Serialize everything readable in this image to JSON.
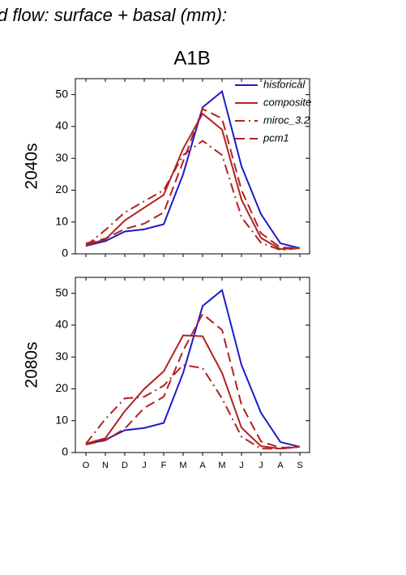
{
  "title": "d flow: surface + basal (mm):",
  "subtitle": "A1B",
  "chart_data": [
    {
      "type": "line",
      "ylabel": "2040s",
      "categories": [
        null,
        null,
        null,
        null,
        null,
        null,
        null,
        null,
        null,
        null,
        null,
        null
      ],
      "ylim": [
        0,
        55
      ],
      "yticks": [
        0,
        10,
        20,
        30,
        40,
        50
      ],
      "legend": "upper right",
      "series": [
        {
          "name": "historical",
          "color": "#1c1cc8",
          "linestyle": "solid",
          "values": [
            2.5,
            4,
            7,
            7.7,
            9.3,
            25,
            46,
            51,
            27.5,
            12.5,
            3.3,
            1.8
          ]
        },
        {
          "name": "composite",
          "color": "#b22222",
          "linestyle": "solid",
          "values": [
            2.8,
            4.5,
            10.5,
            14.5,
            18.5,
            33,
            44,
            39,
            17,
            5,
            1.5,
            1.8
          ]
        },
        {
          "name": "miroc_3.2",
          "color": "#b22222",
          "linestyle": "dashdot",
          "values": [
            2.5,
            7.5,
            13,
            16.5,
            20,
            31,
            35.5,
            31,
            11.5,
            3.5,
            1.2,
            1.8
          ]
        },
        {
          "name": "pcm1",
          "color": "#b22222",
          "linestyle": "dashed",
          "values": [
            3.3,
            4.8,
            7.8,
            9.5,
            13,
            29,
            45.5,
            42.5,
            20,
            6.5,
            2,
            1.8
          ]
        }
      ]
    },
    {
      "type": "line",
      "ylabel": "2080s",
      "categories": [
        "O",
        "N",
        "D",
        "J",
        "F",
        "M",
        "A",
        "M",
        "J",
        "J",
        "A",
        "S"
      ],
      "ylim": [
        0,
        55
      ],
      "yticks": [
        0,
        10,
        20,
        30,
        40,
        50
      ],
      "series": [
        {
          "color": "#1c1cc8",
          "linestyle": "solid",
          "values": [
            2.5,
            4,
            7,
            7.7,
            9.3,
            25,
            46,
            51,
            27.5,
            12.5,
            3.3,
            1.8
          ]
        },
        {
          "color": "#b22222",
          "linestyle": "solid",
          "values": [
            2.8,
            4.5,
            13,
            20,
            25.5,
            36.8,
            36.5,
            25,
            7.8,
            2,
            1.2,
            1.8
          ]
        },
        {
          "color": "#b22222",
          "linestyle": "dashdot",
          "values": [
            2.8,
            10.5,
            17,
            17.5,
            21,
            27.5,
            26.5,
            17,
            5,
            1.2,
            1.2,
            1.8
          ]
        },
        {
          "color": "#b22222",
          "linestyle": "dashed",
          "values": [
            2.5,
            3.8,
            7.5,
            14,
            17.5,
            32,
            43.5,
            38.5,
            15,
            3.5,
            1.5,
            1.8
          ]
        }
      ]
    }
  ]
}
